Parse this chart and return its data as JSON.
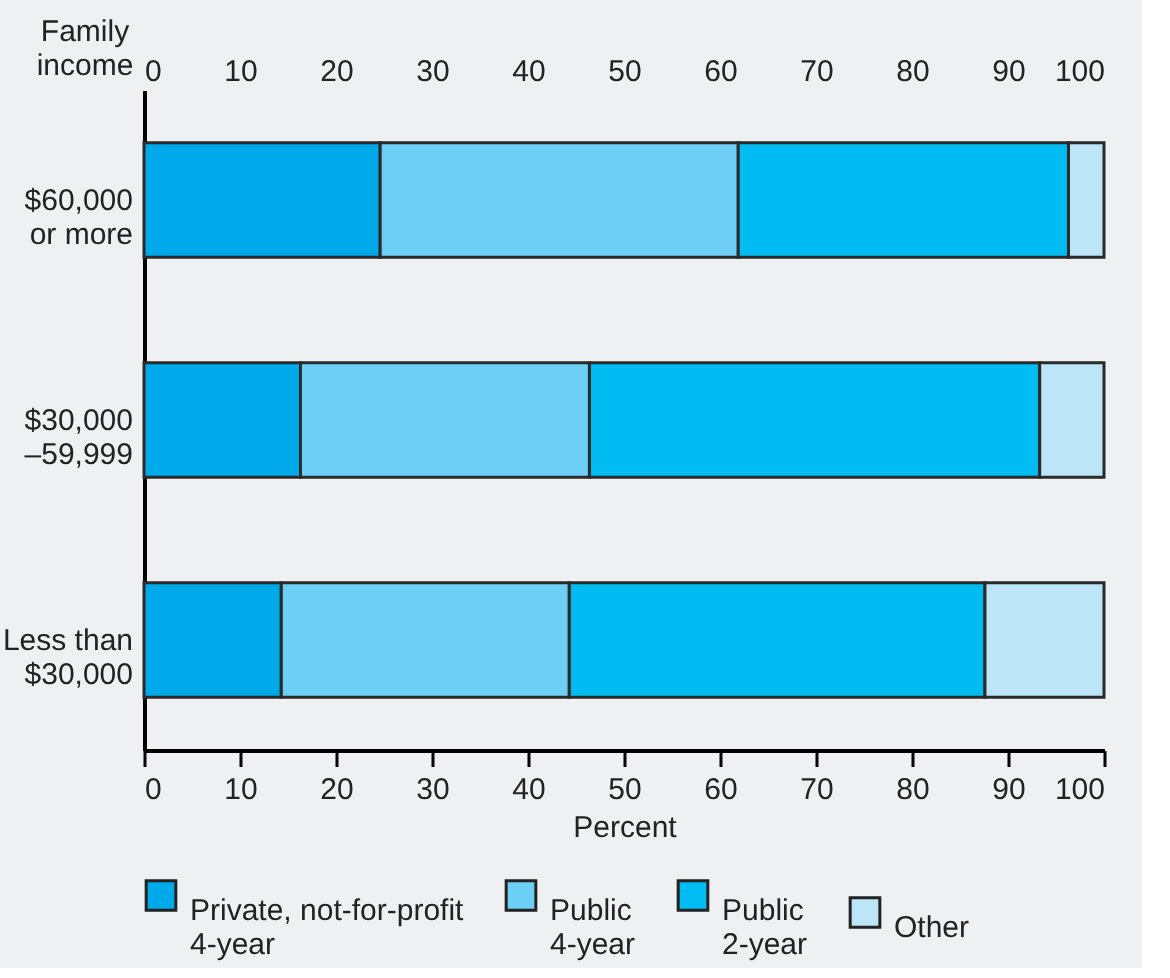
{
  "chart_data": {
    "type": "bar",
    "orientation": "horizontal",
    "stacked": true,
    "categories": [
      "$60,000\nor more",
      "$30,000\n–59,999",
      "Less than\n$30,000"
    ],
    "series": [
      {
        "name": "Private, not-for-profit\n4-year",
        "color": "#00aaea",
        "values": [
          24.6,
          16.3,
          14.3
        ]
      },
      {
        "name": "Public\n4-year",
        "color": "#6dcff6",
        "values": [
          37.3,
          30.1,
          30.0
        ]
      },
      {
        "name": "Public\n2-year",
        "color": "#00bcf2",
        "values": [
          34.4,
          46.9,
          43.3
        ]
      },
      {
        "name": "Other",
        "color": "#bde5f8",
        "values": [
          3.7,
          6.7,
          12.4
        ]
      }
    ],
    "xlabel": "Percent",
    "ylabel": "Family\nincome",
    "xlim": [
      0,
      100
    ],
    "xticks": [
      0,
      10,
      20,
      30,
      40,
      50,
      60,
      70,
      80,
      90,
      100
    ],
    "x2lim": [
      0,
      100
    ],
    "x2ticks": [
      0,
      10,
      20,
      30,
      40,
      50,
      60,
      70,
      80,
      90,
      100
    ],
    "grid": false,
    "legend": "bottom"
  }
}
